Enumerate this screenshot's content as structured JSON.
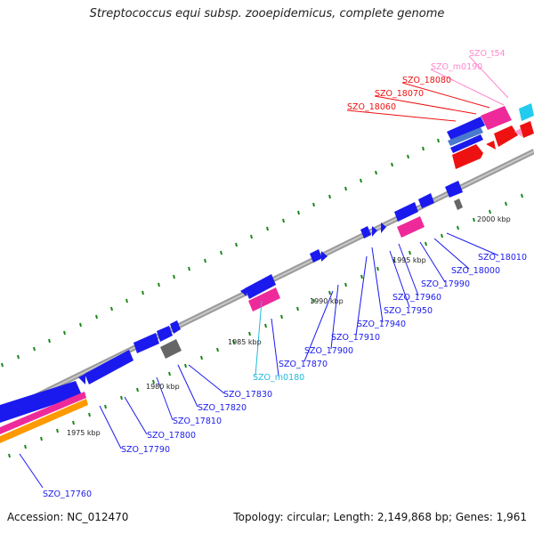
{
  "title": "Streptococcus equi subsp. zooepidemicus, complete genome",
  "footer": {
    "accession": "Accession: NC_012470",
    "summary": "Topology: circular; Length: 2,149,868 bp; Genes: 1,961"
  },
  "scale_labels": [
    "1975 kbp",
    "1980 kbp",
    "1985 kbp",
    "1990 kbp",
    "1995 kbp",
    "2000 kbp"
  ],
  "gene_labels": [
    "SZO_t54",
    "SZO_m0190",
    "SZO_18080",
    "SZO_18070",
    "SZO_18060",
    "SZO_18010",
    "SZO_18000",
    "SZO_17990",
    "SZO_17960",
    "SZO_17950",
    "SZO_17940",
    "SZO_17910",
    "SZO_17900",
    "SZO_17870",
    "SZO_m0180",
    "SZO_17830",
    "SZO_17820",
    "SZO_17810",
    "SZO_17800",
    "SZO_17790",
    "SZO_17760"
  ],
  "colors": {
    "cds": "#1a1aee",
    "rna": "#ee2a9a",
    "red_gene": "#ee1111",
    "cyan_gene": "#22ccee",
    "backbone": "#888888",
    "tick": "#1a8a1a",
    "orange": "#ff9900"
  }
}
